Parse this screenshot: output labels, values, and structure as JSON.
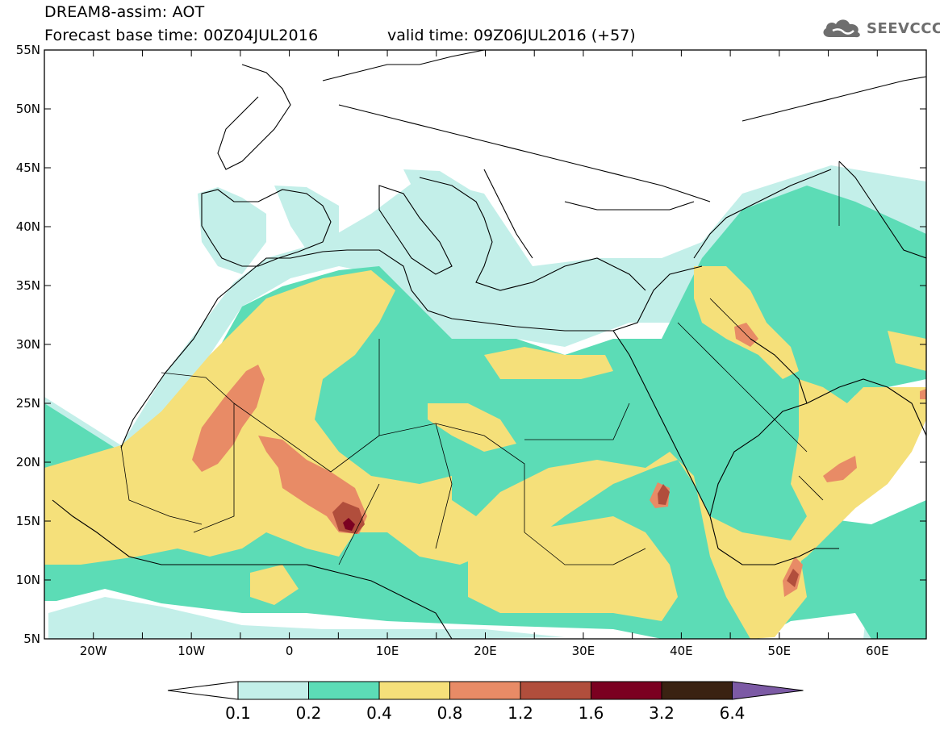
{
  "header": {
    "title": "DREAM8-assim: AOT",
    "base_time": "Forecast base time: 00Z04JUL2016",
    "valid_time": "valid time: 09Z06JUL2016 (+57)",
    "logo_text": "SEEVCCC"
  },
  "map": {
    "lat_labels": [
      "55N",
      "50N",
      "45N",
      "40N",
      "35N",
      "30N",
      "25N",
      "20N",
      "15N",
      "10N",
      "5N"
    ],
    "lon_labels": [
      "20W",
      "10W",
      "0",
      "10E",
      "20E",
      "30E",
      "40E",
      "50E",
      "60E"
    ],
    "lon_range": [
      -25,
      65
    ],
    "lat_range": [
      5,
      55
    ],
    "variable": "AOT"
  },
  "colorbar": {
    "labels": [
      "0.1",
      "0.2",
      "0.4",
      "0.8",
      "1.2",
      "1.6",
      "3.2",
      "6.4"
    ],
    "colors": [
      "#ffffff",
      "#c3efe9",
      "#5cdcb6",
      "#f5e07a",
      "#e88b66",
      "#b14e3c",
      "#7b0021",
      "#3a2212",
      "#7c5aa5"
    ]
  },
  "colors": {
    "c01": "#c3efe9",
    "c02": "#5cdcb6",
    "c04": "#f5e07a",
    "c08": "#e88b66",
    "c12": "#b14e3c",
    "c16": "#7b0021"
  }
}
